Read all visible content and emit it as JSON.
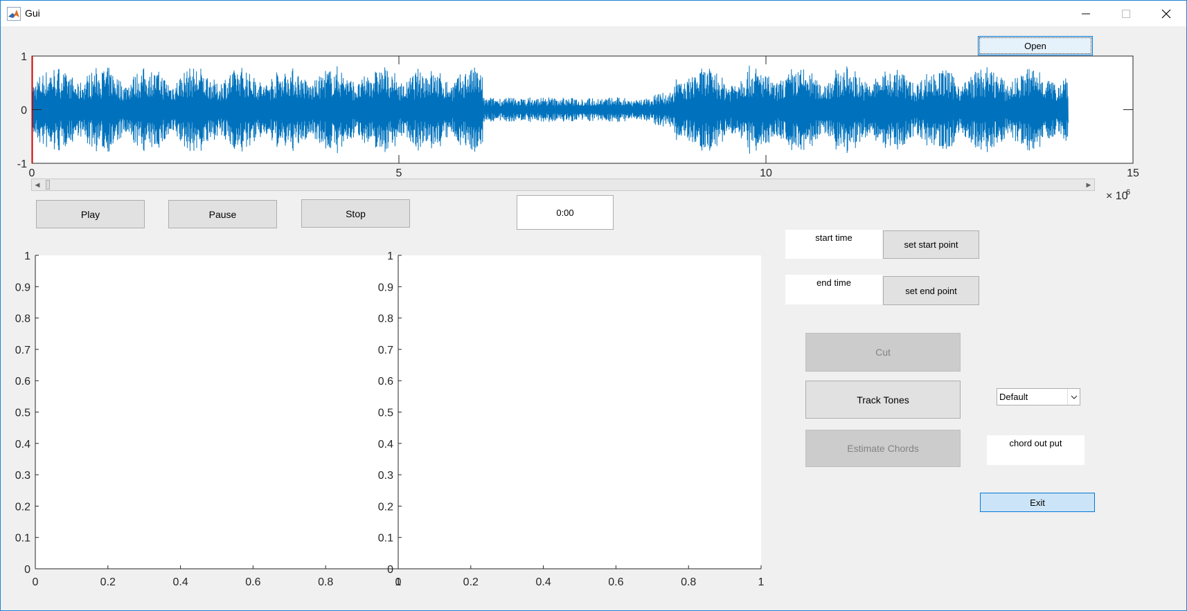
{
  "window": {
    "title": "Gui",
    "icon": "matlab-icon",
    "controls": [
      "minimize-icon",
      "maximize-icon",
      "close-icon"
    ]
  },
  "toolbar": {
    "open_label": "Open"
  },
  "waveform": {
    "color": "#0072bd",
    "yticks": [
      "1",
      "0",
      "-1"
    ],
    "xticks": [
      "0",
      "5",
      "10",
      "15"
    ],
    "x_exponent_base": "× 10",
    "x_exponent": "6",
    "xlim": [
      0,
      15000000
    ],
    "ylim": [
      -1,
      1
    ],
    "cursor_color": "#cc0000"
  },
  "playback": {
    "play_label": "Play",
    "pause_label": "Pause",
    "stop_label": "Stop",
    "time_value": "0:00"
  },
  "controls": {
    "start_time_label": "start time",
    "set_start_label": "set start point",
    "end_time_label": "end time",
    "set_end_label": "set end point",
    "cut_label": "Cut",
    "track_tones_label": "Track Tones",
    "estimate_chords_label": "Estimate Chords",
    "dropdown_value": "Default",
    "chord_output_label": "chord out put",
    "exit_label": "Exit"
  },
  "chart_data": [
    {
      "type": "line",
      "series": [],
      "xlim": [
        0,
        1
      ],
      "ylim": [
        0,
        1
      ],
      "xticks": [
        "0",
        "0.2",
        "0.4",
        "0.6",
        "0.8",
        "1"
      ],
      "yticks": [
        "0",
        "0.1",
        "0.2",
        "0.3",
        "0.4",
        "0.5",
        "0.6",
        "0.7",
        "0.8",
        "0.9",
        "1"
      ]
    },
    {
      "type": "line",
      "series": [],
      "xlim": [
        0,
        1
      ],
      "ylim": [
        0,
        1
      ],
      "xticks": [
        "0",
        "0.2",
        "0.4",
        "0.6",
        "0.8",
        "1"
      ],
      "yticks": [
        "0",
        "0.1",
        "0.2",
        "0.3",
        "0.4",
        "0.5",
        "0.6",
        "0.7",
        "0.8",
        "0.9",
        "1"
      ]
    }
  ]
}
